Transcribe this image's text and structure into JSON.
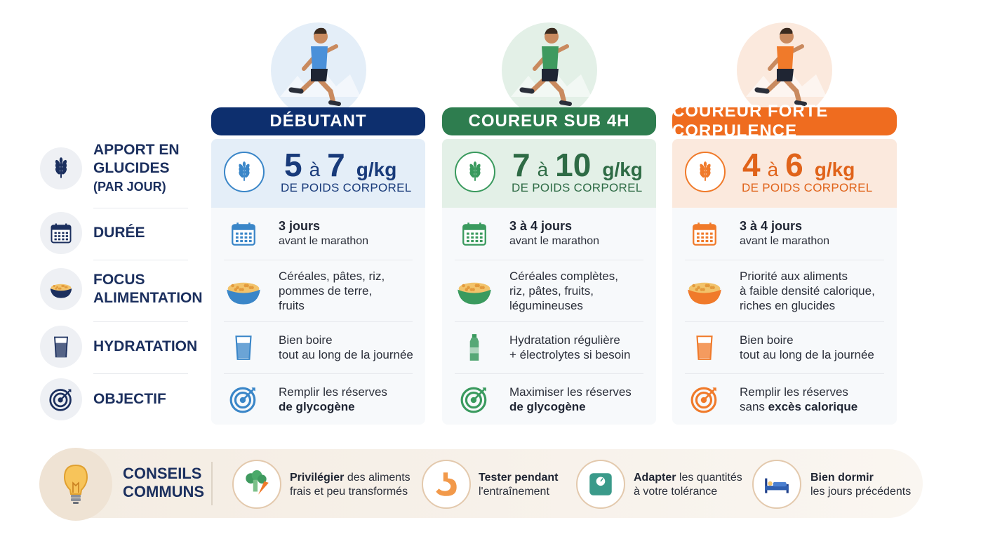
{
  "row_labels": [
    {
      "lines": [
        "APPORT EN",
        "GLUCIDES"
      ],
      "sub": "(PAR JOUR)"
    },
    {
      "lines": [
        "DURÉE"
      ]
    },
    {
      "lines": [
        "FOCUS",
        "ALIMENTATION"
      ]
    },
    {
      "lines": [
        "HYDRATATION"
      ]
    },
    {
      "lines": [
        "OBJECTIF"
      ]
    }
  ],
  "profiles": [
    {
      "title": "DÉBUTANT",
      "header_color": "#0d2f6e",
      "accent_color": "#3a86c8",
      "panel_color": "#e4eef8",
      "number_color": "#183a7a",
      "shirt_color": "#4a90d9",
      "carbs": {
        "min": 5,
        "joiner": "à",
        "max": 7,
        "unit": "g/kg",
        "basis": "DE POIDS CORPOREL"
      },
      "duration": {
        "bold": "3 jours",
        "note": "avant le marathon"
      },
      "focus": [
        "Céréales, pâtes, riz,",
        "pommes de terre,",
        "fruits"
      ],
      "hydration": [
        "Bien boire",
        "tout au long de la journée"
      ],
      "goal": {
        "line": "Remplir les réserves",
        "bold": "de glycogène"
      }
    },
    {
      "title": "COUREUR SUB 4H",
      "header_color": "#2e7d4f",
      "accent_color": "#3a9a5e",
      "panel_color": "#e3f0e7",
      "number_color": "#2e6b45",
      "shirt_color": "#3f9a5f",
      "carbs": {
        "min": 7,
        "joiner": "à",
        "max": 10,
        "unit": "g/kg",
        "basis": "DE POIDS CORPOREL"
      },
      "duration": {
        "bold": "3 à 4 jours",
        "note": "avant le marathon"
      },
      "focus": [
        "Céréales complètes,",
        "riz, pâtes, fruits,",
        "légumineuses"
      ],
      "hydration": [
        "Hydratation régulière",
        "+ électrolytes si besoin"
      ],
      "goal": {
        "line": "Maximiser les réserves",
        "bold": "de glycogène"
      }
    },
    {
      "title": "COUREUR FORTE CORPULENCE",
      "header_color": "#ef6c1f",
      "accent_color": "#f07a2a",
      "panel_color": "#fbe9dd",
      "number_color": "#e0631a",
      "shirt_color": "#f07a2a",
      "carbs": {
        "min": 4,
        "joiner": "à",
        "max": 6,
        "unit": "g/kg",
        "basis": "DE POIDS CORPOREL"
      },
      "duration": {
        "bold": "3 à 4 jours",
        "note": "avant le marathon"
      },
      "focus": [
        "Priorité aux aliments",
        "à faible densité calorique,",
        "riches en glucides"
      ],
      "hydration": [
        "Bien boire",
        "tout au long de la journée"
      ],
      "goal": {
        "line": "Remplir les réserves",
        "plain": "sans",
        "bold": "excès calorique"
      }
    }
  ],
  "tips": {
    "title": [
      "CONSEILS",
      "COMMUNS"
    ],
    "items": [
      {
        "bold": "Privilégier",
        "rest": "des aliments",
        "line2": "frais et peu transformés"
      },
      {
        "bold": "Tester pendant",
        "line2": "l'entraînement"
      },
      {
        "bold": "Adapter",
        "rest": "les quantités",
        "line2": "à votre tolérance"
      },
      {
        "bold": "Bien dormir",
        "line2": "les jours précédents"
      }
    ]
  }
}
